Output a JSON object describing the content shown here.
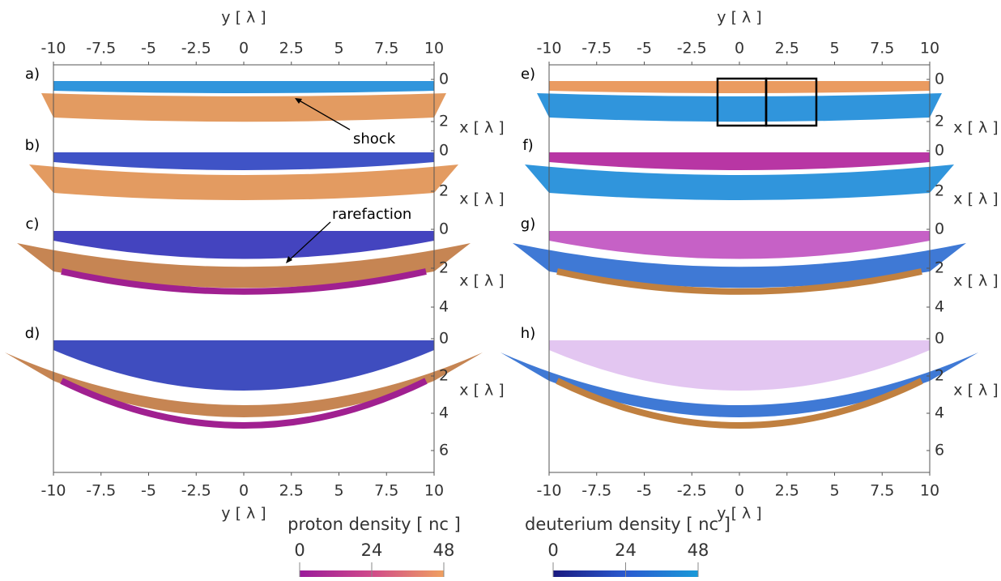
{
  "columns": [
    {
      "y_label": "y [ λ ]",
      "y_ticks": [
        -10,
        -7.5,
        -5,
        -2.5,
        0,
        2.5,
        5,
        7.5,
        10
      ],
      "panels": [
        {
          "label": "a)",
          "x_label": "x [ λ ]",
          "x_ticks": [
            0,
            2
          ]
        },
        {
          "label": "b)",
          "x_label": "x [ λ ]",
          "x_ticks": [
            0,
            2
          ]
        },
        {
          "label": "c)",
          "x_label": "x [ λ ]",
          "x_ticks": [
            0,
            2,
            4
          ]
        },
        {
          "label": "d)",
          "x_label": "x [ λ ]",
          "x_ticks": [
            0,
            2,
            4,
            6
          ]
        }
      ]
    },
    {
      "y_label": "y [ λ ]",
      "y_ticks": [
        -10,
        -7.5,
        -5,
        -2.5,
        0,
        2.5,
        5,
        7.5,
        10
      ],
      "panels": [
        {
          "label": "e)",
          "x_label": "x [ λ ]",
          "x_ticks": [
            0,
            2
          ]
        },
        {
          "label": "f)",
          "x_label": "x [ λ ]",
          "x_ticks": [
            0,
            2
          ]
        },
        {
          "label": "g)",
          "x_label": "x [ λ ]",
          "x_ticks": [
            0,
            2,
            4
          ]
        },
        {
          "label": "h)",
          "x_label": "x [ λ ]",
          "x_ticks": [
            0,
            2,
            4,
            6
          ]
        }
      ]
    }
  ],
  "annotations": {
    "shock": "shock",
    "rarefaction": "rarefaction"
  },
  "colorbars": [
    {
      "title": "proton density [ nc ]",
      "ticks": [
        0,
        24,
        48
      ]
    },
    {
      "title": "deuterium density [ nc ]",
      "ticks": [
        0,
        24,
        48
      ]
    }
  ]
}
